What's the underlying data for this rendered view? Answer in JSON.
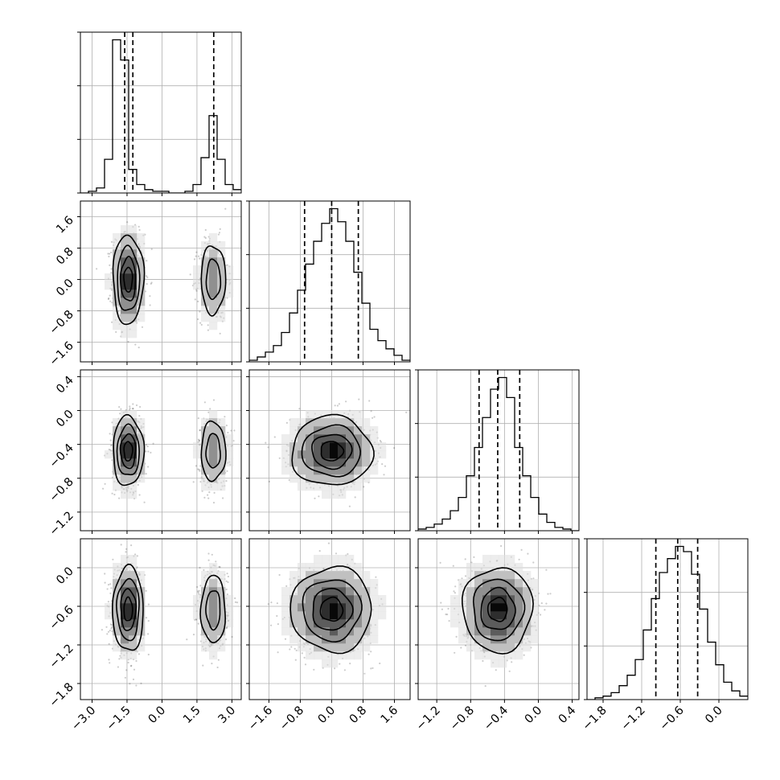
{
  "chart_data": {
    "type": "corner",
    "parameters": 4,
    "ticks": {
      "p1": [
        "−3.0",
        "−1.5",
        "0.0",
        "1.5",
        "3.0"
      ],
      "p2": [
        "−1.6",
        "−0.8",
        "0.0",
        "0.8",
        "1.6"
      ],
      "p3": [
        "−1.2",
        "−0.8",
        "−0.4",
        "0.0",
        "0.4"
      ],
      "p4": [
        "−1.8",
        "−1.2",
        "−0.6",
        "0.0"
      ]
    },
    "tick_values": {
      "p1": [
        -3.0,
        -1.5,
        0.0,
        1.5,
        3.0
      ],
      "p2": [
        -1.6,
        -0.8,
        0.0,
        0.8,
        1.6
      ],
      "p3": [
        -1.2,
        -0.8,
        -0.4,
        0.0,
        0.4
      ],
      "p4": [
        -1.8,
        -1.2,
        -0.6,
        0.0
      ]
    },
    "ranges": {
      "p1": [
        -3.5,
        3.4
      ],
      "p2": [
        -2.1,
        2.0
      ],
      "p3": [
        -1.42,
        0.48
      ],
      "p4": [
        -2.05,
        0.45
      ]
    },
    "histograms": {
      "p1": {
        "edges": [
          -3.5,
          -3.155,
          -2.81,
          -2.465,
          -2.12,
          -1.775,
          -1.43,
          -1.085,
          -0.74,
          -0.395,
          -0.05,
          0.295,
          0.64,
          0.985,
          1.33,
          1.675,
          2.02,
          2.365,
          2.71,
          3.055,
          3.4
        ],
        "counts": [
          0.0,
          0.01,
          0.03,
          0.2,
          0.91,
          0.79,
          0.14,
          0.05,
          0.02,
          0.01,
          0.01,
          0.0,
          0.0,
          0.01,
          0.05,
          0.21,
          0.46,
          0.2,
          0.05,
          0.02
        ],
        "quantiles": [
          -1.6,
          -1.25,
          2.22
        ]
      },
      "p2": {
        "edges": [
          -2.1,
          -1.895,
          -1.69,
          -1.485,
          -1.28,
          -1.075,
          -0.87,
          -0.665,
          -0.46,
          -0.255,
          -0.05,
          0.155,
          0.36,
          0.565,
          0.77,
          0.975,
          1.18,
          1.385,
          1.59,
          1.795,
          2.0
        ],
        "counts": [
          0.01,
          0.03,
          0.06,
          0.1,
          0.18,
          0.3,
          0.44,
          0.6,
          0.74,
          0.85,
          0.94,
          0.86,
          0.74,
          0.55,
          0.36,
          0.2,
          0.13,
          0.08,
          0.04,
          0.01
        ],
        "quantiles": [
          -0.69,
          0.0,
          0.68
        ]
      },
      "p3": {
        "edges": [
          -1.42,
          -1.325,
          -1.23,
          -1.135,
          -1.04,
          -0.945,
          -0.85,
          -0.755,
          -0.66,
          -0.565,
          -0.47,
          -0.375,
          -0.28,
          -0.185,
          -0.09,
          0.005,
          0.1,
          0.195,
          0.29,
          0.385,
          0.48
        ],
        "counts": [
          0.01,
          0.02,
          0.04,
          0.07,
          0.12,
          0.2,
          0.33,
          0.5,
          0.68,
          0.85,
          0.92,
          0.8,
          0.5,
          0.33,
          0.2,
          0.1,
          0.05,
          0.02,
          0.01,
          0.0
        ],
        "quantiles": [
          -0.7,
          -0.48,
          -0.22
        ]
      },
      "p4": {
        "edges": [
          -2.05,
          -1.925,
          -1.8,
          -1.675,
          -1.55,
          -1.425,
          -1.3,
          -1.175,
          -1.05,
          -0.925,
          -0.8,
          -0.675,
          -0.55,
          -0.425,
          -0.3,
          -0.175,
          -0.05,
          0.075,
          0.2,
          0.325,
          0.45
        ],
        "counts": [
          0.0,
          0.01,
          0.02,
          0.04,
          0.08,
          0.14,
          0.23,
          0.4,
          0.58,
          0.73,
          0.81,
          0.88,
          0.85,
          0.72,
          0.52,
          0.33,
          0.2,
          0.1,
          0.05,
          0.02
        ],
        "quantiles": [
          -0.98,
          -0.64,
          -0.33
        ]
      }
    },
    "panels_2d": [
      {
        "x": "p1",
        "y": "p2",
        "blobs": [
          {
            "cx": -1.45,
            "cy": 0.0,
            "sx": 0.32,
            "sy": 0.55,
            "w": 1.0
          },
          {
            "cx": 2.2,
            "cy": 0.0,
            "sx": 0.3,
            "sy": 0.5,
            "w": 0.55
          }
        ]
      },
      {
        "x": "p1",
        "y": "p3",
        "blobs": [
          {
            "cx": -1.45,
            "cy": -0.48,
            "sx": 0.32,
            "sy": 0.2,
            "w": 1.0
          },
          {
            "cx": 2.2,
            "cy": -0.48,
            "sx": 0.3,
            "sy": 0.2,
            "w": 0.55
          }
        ]
      },
      {
        "x": "p2",
        "y": "p3",
        "blobs": [
          {
            "cx": 0.0,
            "cy": -0.48,
            "sx": 0.5,
            "sy": 0.2,
            "w": 1.0
          }
        ]
      },
      {
        "x": "p1",
        "y": "p4",
        "blobs": [
          {
            "cx": -1.45,
            "cy": -0.65,
            "sx": 0.32,
            "sy": 0.32,
            "w": 1.0
          },
          {
            "cx": 2.2,
            "cy": -0.65,
            "sx": 0.3,
            "sy": 0.3,
            "w": 0.55
          }
        ]
      },
      {
        "x": "p2",
        "y": "p4",
        "blobs": [
          {
            "cx": 0.0,
            "cy": -0.65,
            "sx": 0.5,
            "sy": 0.32,
            "w": 1.0
          }
        ]
      },
      {
        "x": "p3",
        "y": "p4",
        "blobs": [
          {
            "cx": -0.48,
            "cy": -0.65,
            "sx": 0.2,
            "sy": 0.32,
            "w": 1.0
          }
        ]
      }
    ],
    "contour_levels": [
      0.12,
      0.33,
      0.6,
      0.85
    ],
    "grid": true
  }
}
